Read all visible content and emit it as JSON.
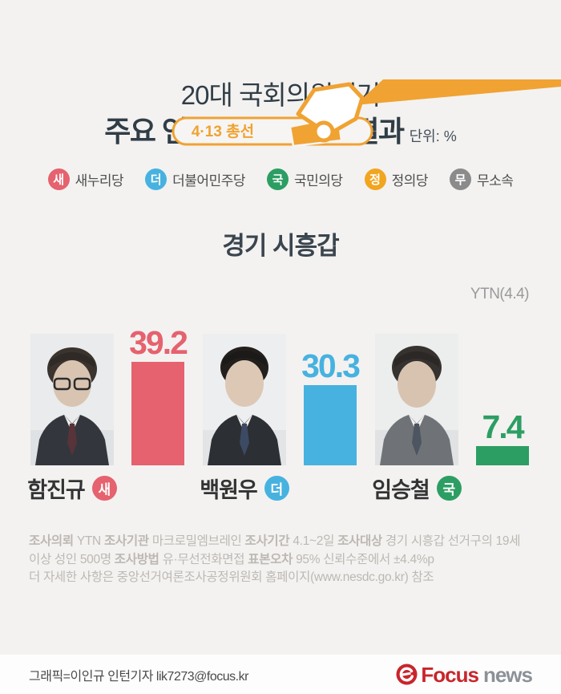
{
  "page": {
    "background": "#f3f2f1",
    "accent_orange": "#f0a232"
  },
  "header": {
    "badge_label": "4·13 총선"
  },
  "title": {
    "line1": "20대 국회의원선거",
    "line2": "주요 언론사 여론조사 결과",
    "unit": "단위: %"
  },
  "legend": {
    "items": [
      {
        "short": "새",
        "label": "새누리당",
        "color": "#e5626e"
      },
      {
        "short": "더",
        "label": "더불어민주당",
        "color": "#47b2e0"
      },
      {
        "short": "국",
        "label": "국민의당",
        "color": "#2d9e63"
      },
      {
        "short": "정",
        "label": "정의당",
        "color": "#f2a51f"
      },
      {
        "short": "무",
        "label": "무소속",
        "color": "#8b8b8b"
      }
    ]
  },
  "region": {
    "title": "경기 시흥갑",
    "source": "YTN(4.4)"
  },
  "chart_data": {
    "type": "bar",
    "title": "경기 시흥갑",
    "categories": [
      "함진규",
      "백원우",
      "임승철"
    ],
    "values": [
      39.2,
      30.3,
      7.4
    ],
    "parties": [
      "새",
      "더",
      "국"
    ],
    "series_colors": [
      "#e5626e",
      "#47b2e0",
      "#2d9e63"
    ],
    "unit": "%",
    "ylim": [
      0,
      50
    ],
    "source": "YTN(4.4)",
    "legend_position": "top"
  },
  "candidates": [
    {
      "name": "함진규",
      "value": "39.2",
      "party_short": "새",
      "party_color": "#e5626e",
      "value_color": "#e5626e"
    },
    {
      "name": "백원우",
      "value": "30.3",
      "party_short": "더",
      "party_color": "#47b2e0",
      "value_color": "#47b2e0"
    },
    {
      "name": "임승철",
      "value": "7.4",
      "party_short": "국",
      "party_color": "#2d9e63",
      "value_color": "#2d9e63"
    }
  ],
  "footnote": {
    "line1": [
      {
        "text": "조사의뢰",
        "bold": true
      },
      {
        "text": " YTN ",
        "bold": false
      },
      {
        "text": "조사기관",
        "bold": true
      },
      {
        "text": " 마크로밀엠브레인 ",
        "bold": false
      },
      {
        "text": "조사기간",
        "bold": true
      },
      {
        "text": " 4.1~2일 ",
        "bold": false
      },
      {
        "text": "조사대상",
        "bold": true
      },
      {
        "text": " 경기 시흥갑 선거구의 19세 이상 성인 500명 ",
        "bold": false
      },
      {
        "text": "조사방법",
        "bold": true
      },
      {
        "text": " 유·무선전화면접 ",
        "bold": false
      },
      {
        "text": "표본오차",
        "bold": true
      },
      {
        "text": " 95% 신뢰수준에서 ±4.4%p",
        "bold": false
      }
    ],
    "line2": [
      {
        "text": "더 자세한 사항은 중앙선거여론조사공정위원회 홈페이지(www.nesdc.go.kr) 참조",
        "bold": false
      }
    ]
  },
  "credit": {
    "text": "그래픽=이인규 인턴기자 lik7273@focus.kr"
  },
  "logo": {
    "focus": "Focus",
    "news": "news"
  }
}
